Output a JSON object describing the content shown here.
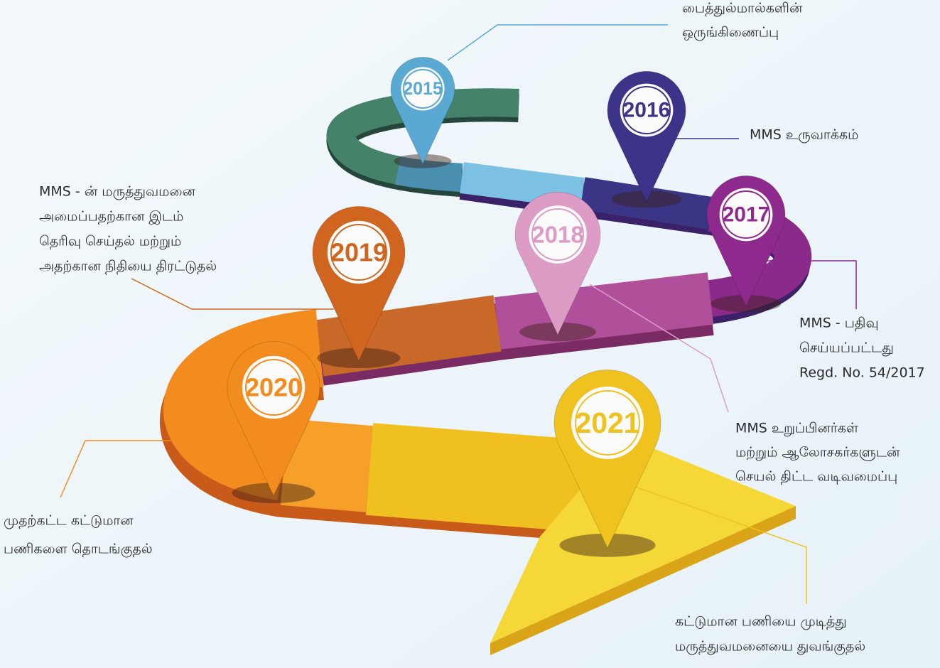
{
  "milestones": [
    {
      "year": "2015",
      "color": "#5aa9d2",
      "lines": [
        "பைத்துல்மால்களின்",
        "ஒருங்கிணைப்பு"
      ]
    },
    {
      "year": "2016",
      "color": "#3d3388",
      "lines": [
        "MMS உருவாக்கம்"
      ]
    },
    {
      "year": "2017",
      "color": "#8e2a8e",
      "lines": [
        "MMS - பதிவு",
        "செய்யப்பட்டது",
        "Regd. No. 54/2017"
      ]
    },
    {
      "year": "2018",
      "color": "#dd9cc6",
      "lines": [
        "MMS உறுப்பினர்கள்",
        "மற்றும் ஆலோசகர்களுடன்",
        "செயல் திட்ட வடிவமைப்பு"
      ]
    },
    {
      "year": "2019",
      "color": "#d0651f",
      "lines": [
        "MMS - ன் மருத்துவமனை",
        "அமைப்பதற்கான இடம்",
        "தெரிவு செய்தல் மற்றும்",
        "அதற்கான நிதியை திரட்டுதல்"
      ]
    },
    {
      "year": "2020",
      "color": "#f28c1e",
      "lines": [
        "முதற்கட்ட கட்டுமான",
        "பணிகளை தொடங்குதல்"
      ]
    },
    {
      "year": "2021",
      "color": "#efc21f",
      "lines": [
        "கட்டுமான பணியை முடித்து",
        "மருத்துவமனையை துவங்குதல்"
      ]
    }
  ]
}
